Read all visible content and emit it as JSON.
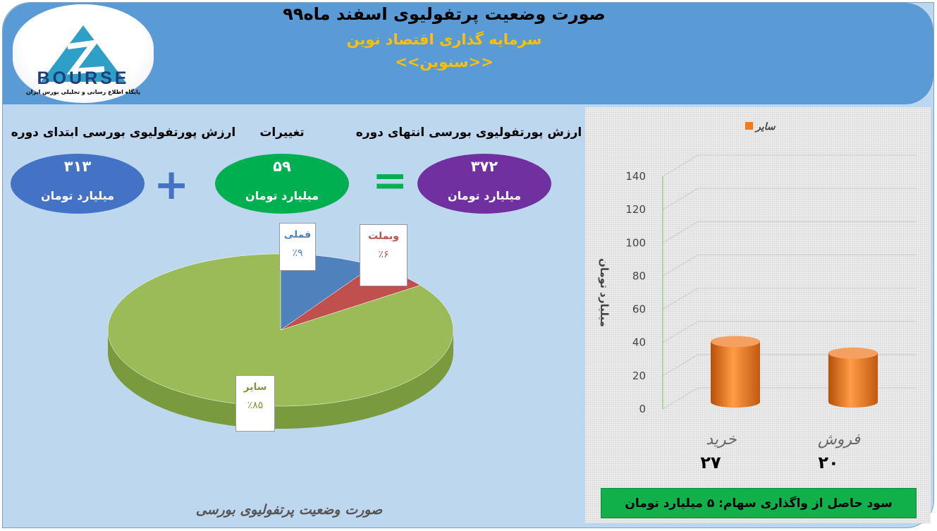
{
  "header": {
    "title": "صورت وضعیت پرتفولیوی اسفند ماه۹۹",
    "company": "سرمایه گذاری اقتصاد نوین",
    "symbol": "<<سنوین>>",
    "logo": {
      "text": "BOURSE",
      "subtitle": "پایگاه اطلاع رسانی و تحلیلی بورس ایران"
    }
  },
  "summary": {
    "start": {
      "label": "ارزش پورتفولیوی بورسی ابتدای دوره",
      "value": "۳۱۳",
      "unit": "میلیارد تومان",
      "color": "#4472c4"
    },
    "change": {
      "label": "تغییرات",
      "value": "۵۹",
      "unit": "میلیارد تومان",
      "color": "#00b050"
    },
    "end": {
      "label": "ارزش پورتفولیوی بورسی انتهای دوره",
      "value": "۳۷۲",
      "unit": "میلیارد تومان",
      "color": "#7030a0"
    },
    "plus": "+",
    "equals": "="
  },
  "chart_data": [
    {
      "type": "pie",
      "title": "صورت وضعیت پرتفولیوی بورسی",
      "slices": [
        {
          "name": "فملی",
          "value": 9,
          "label": "٪۹",
          "color": "#4f81bd"
        },
        {
          "name": "وبملت",
          "value": 6,
          "label": "٪۶",
          "color": "#c0504d"
        },
        {
          "name": "سایر",
          "value": 85,
          "label": "٪۸۵",
          "color": "#9bbb59"
        }
      ]
    },
    {
      "type": "bar",
      "legend": "سایر",
      "legend_position": "top",
      "ylabel": "میلیارد تومان",
      "ylim": [
        0,
        140
      ],
      "yticks": [
        0,
        20,
        40,
        60,
        80,
        100,
        120,
        140
      ],
      "categories": [
        "خرید",
        "فروش"
      ],
      "values": [
        27,
        20
      ],
      "value_labels": [
        "۲۷",
        "۲۰"
      ],
      "color": "#f07b20"
    }
  ],
  "profit": "سود حاصل از واگذاری سهام: ۵ میلیارد تومان"
}
